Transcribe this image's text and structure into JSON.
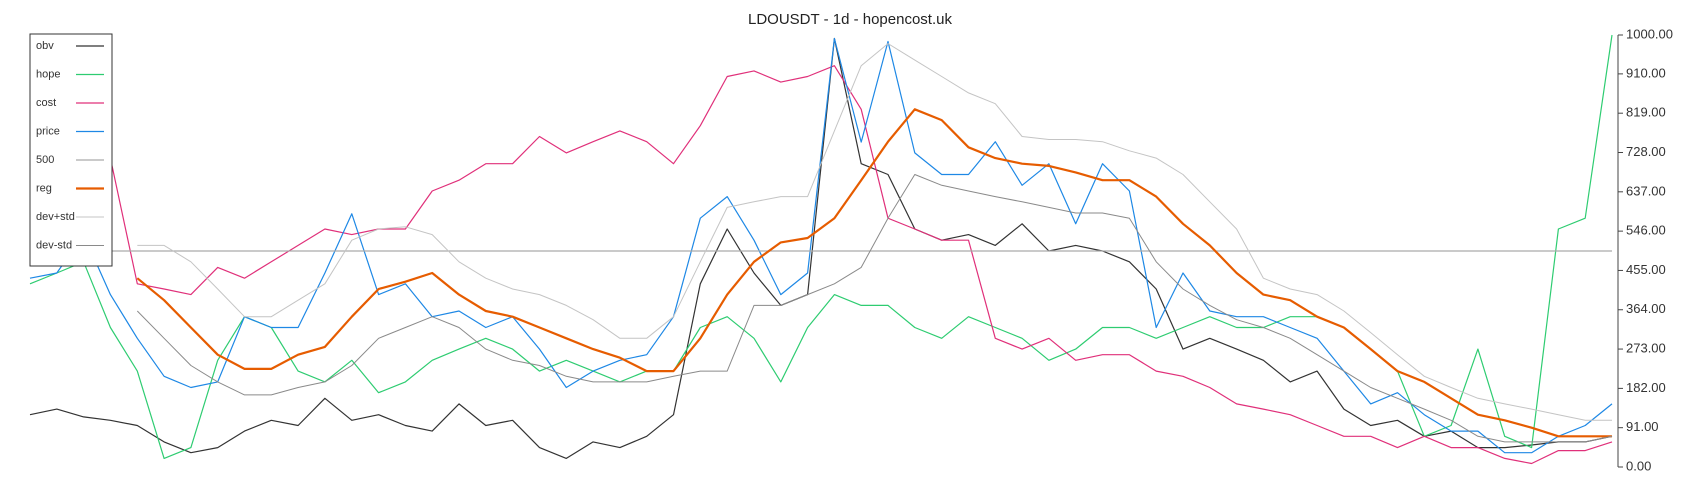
{
  "chart_data": {
    "type": "line",
    "title": "LDOUSDT - 1d - hopencost.uk",
    "ylim": [
      0,
      1000
    ],
    "yticks": [
      {
        "value": 0,
        "label": "0.00"
      },
      {
        "value": 91,
        "label": "91.00"
      },
      {
        "value": 182,
        "label": "182.00"
      },
      {
        "value": 273,
        "label": "273.00"
      },
      {
        "value": 364,
        "label": "364.00"
      },
      {
        "value": 455,
        "label": "455.00"
      },
      {
        "value": 546,
        "label": "546.00"
      },
      {
        "value": 637,
        "label": "637.00"
      },
      {
        "value": 728,
        "label": "728.00"
      },
      {
        "value": 819,
        "label": "819.00"
      },
      {
        "value": 910,
        "label": "910.00"
      },
      {
        "value": 1000,
        "label": "1000.00"
      }
    ],
    "y_axis_side": "right",
    "grid": false,
    "legend": "upper left",
    "series": [
      {
        "name": "obv",
        "color": "#333333",
        "line_width": 1.2,
        "values": [
          121,
          134,
          116,
          108,
          96,
          58,
          33,
          45,
          83,
          108,
          96,
          159,
          108,
          121,
          96,
          83,
          146,
          96,
          108,
          45,
          20,
          58,
          45,
          71,
          121,
          424,
          551,
          449,
          374,
          399,
          992,
          702,
          677,
          551,
          525,
          538,
          513,
          563,
          500,
          513,
          500,
          475,
          412,
          273,
          298,
          273,
          247,
          197,
          222,
          134,
          96,
          108,
          71,
          83,
          45,
          45,
          51,
          58,
          58,
          71
        ]
      },
      {
        "name": "hope",
        "color": "#2ecc71",
        "line_width": 1.2,
        "values": [
          424,
          449,
          475,
          323,
          222,
          20,
          45,
          247,
          348,
          323,
          222,
          197,
          247,
          172,
          197,
          247,
          273,
          298,
          273,
          222,
          247,
          222,
          197,
          222,
          222,
          323,
          348,
          298,
          197,
          323,
          399,
          374,
          374,
          323,
          298,
          348,
          323,
          298,
          247,
          273,
          323,
          323,
          298,
          323,
          348,
          323,
          323,
          348,
          348,
          323,
          273,
          222,
          71,
          96,
          273,
          71,
          45,
          551,
          576,
          1000
        ]
      },
      {
        "name": "cost",
        "color": "#e0307a",
        "line_width": 1.2,
        "values": [
          702,
          689,
          702,
          715,
          424,
          412,
          399,
          462,
          437,
          475,
          513,
          551,
          538,
          551,
          551,
          639,
          664,
          702,
          702,
          765,
          727,
          753,
          778,
          753,
          702,
          790,
          904,
          917,
          891,
          904,
          929,
          828,
          576,
          551,
          525,
          525,
          298,
          273,
          298,
          247,
          260,
          260,
          222,
          210,
          184,
          146,
          134,
          121,
          96,
          71,
          71,
          45,
          71,
          45,
          45,
          20,
          8,
          38,
          38,
          58
        ]
      },
      {
        "name": "price",
        "color": "#1e88e5",
        "line_width": 1.2,
        "values": [
          437,
          449,
          538,
          399,
          298,
          210,
          184,
          197,
          348,
          323,
          323,
          449,
          586,
          399,
          424,
          348,
          361,
          323,
          348,
          273,
          184,
          222,
          247,
          260,
          348,
          576,
          626,
          525,
          399,
          449,
          992,
          752,
          985,
          727,
          677,
          677,
          753,
          652,
          702,
          563,
          702,
          639,
          323,
          449,
          361,
          348,
          348,
          323,
          298,
          222,
          146,
          172,
          121,
          83,
          83,
          33,
          33,
          71,
          96,
          146
        ]
      },
      {
        "name": "500",
        "color": "#aaaaaa",
        "line_width": 1.2,
        "values": [
          500,
          500,
          500,
          500,
          500,
          500,
          500,
          500,
          500,
          500,
          500,
          500,
          500,
          500,
          500,
          500,
          500,
          500,
          500,
          500,
          500,
          500,
          500,
          500,
          500,
          500,
          500,
          500,
          500,
          500,
          500,
          500,
          500,
          500,
          500,
          500,
          500,
          500,
          500,
          500,
          500,
          500,
          500,
          500,
          500,
          500,
          500,
          500,
          500,
          500,
          500,
          500,
          500,
          500,
          500,
          500,
          500,
          500,
          500,
          500
        ]
      },
      {
        "name": "reg",
        "color": "#e65c00",
        "line_width": 2.2,
        "values": [
          null,
          null,
          null,
          null,
          437,
          386,
          323,
          260,
          227,
          227,
          260,
          278,
          348,
          412,
          429,
          449,
          399,
          361,
          348,
          323,
          298,
          273,
          253,
          222,
          222,
          298,
          399,
          475,
          520,
          530,
          576,
          664,
          753,
          828,
          803,
          740,
          715,
          702,
          697,
          682,
          664,
          664,
          626,
          563,
          513,
          449,
          399,
          386,
          348,
          323,
          273,
          222,
          197,
          159,
          121,
          108,
          91,
          71,
          71,
          71
        ]
      },
      {
        "name": "dev+std",
        "color": "#c4c4c4",
        "line_width": 1,
        "values": [
          null,
          null,
          null,
          null,
          513,
          513,
          475,
          412,
          348,
          348,
          386,
          424,
          525,
          551,
          556,
          538,
          475,
          437,
          412,
          399,
          374,
          341,
          298,
          298,
          348,
          475,
          601,
          614,
          626,
          626,
          778,
          929,
          980,
          942,
          904,
          866,
          841,
          765,
          758,
          758,
          753,
          732,
          715,
          677,
          614,
          551,
          437,
          412,
          399,
          361,
          311,
          260,
          210,
          184,
          159,
          146,
          134,
          121,
          108,
          108
        ]
      },
      {
        "name": "dev-std",
        "color": "#8a8a8a",
        "line_width": 1,
        "values": [
          null,
          null,
          null,
          null,
          361,
          298,
          235,
          197,
          167,
          167,
          184,
          197,
          235,
          298,
          323,
          348,
          323,
          273,
          247,
          235,
          210,
          197,
          197,
          197,
          210,
          222,
          222,
          374,
          374,
          399,
          424,
          462,
          576,
          677,
          652,
          639,
          626,
          614,
          601,
          588,
          588,
          576,
          475,
          412,
          374,
          341,
          323,
          298,
          260,
          222,
          184,
          159,
          134,
          108,
          71,
          58,
          58,
          58,
          58,
          71
        ]
      }
    ]
  }
}
